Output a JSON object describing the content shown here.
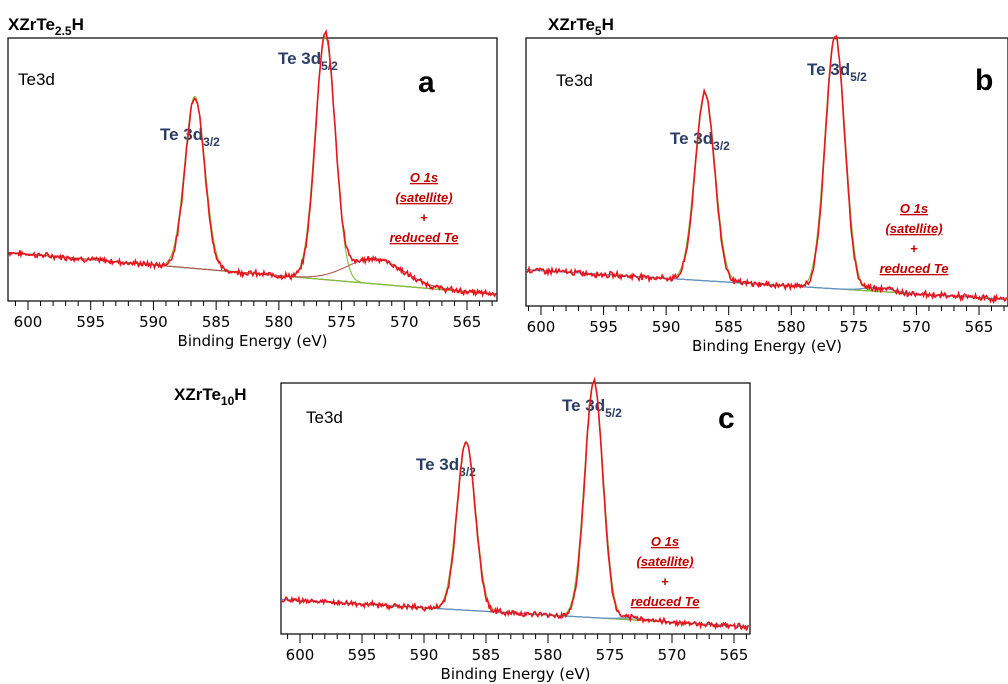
{
  "chart_data": [
    {
      "type": "line",
      "panel": "a",
      "sample": "XZrTe",
      "sample_sub": "2.5",
      "sample_suffix": "H",
      "region": "Te3d",
      "xlabel": "Binding Energy (eV)",
      "xlim": [
        602,
        562
      ],
      "x_reversed": true,
      "xticks": [
        600,
        595,
        590,
        585,
        580,
        575,
        570,
        565
      ],
      "peak_labels": [
        {
          "main": "Te 3d",
          "sub": "3/2",
          "energy": 586.7
        },
        {
          "main": "Te 3d",
          "sub": "5/2",
          "energy": 576.3
        }
      ],
      "annotation": [
        "O 1s",
        "(satellite)",
        "+",
        "reduced Te"
      ],
      "peaks": [
        {
          "name": "Te 3d3/2",
          "center": 586.7,
          "fwhm": 1.8,
          "height": 0.68
        },
        {
          "name": "Te 3d5/2",
          "center": 576.3,
          "fwhm": 1.8,
          "height": 0.96
        },
        {
          "name": "O 1s (satellite) + reduced Te",
          "center": 572.3,
          "fwhm": 5.0,
          "height": 0.1
        }
      ],
      "background": {
        "start": 0.17,
        "end": 0.0
      },
      "colors": {
        "envelope": "#e8141e",
        "component": "#7dbf3a",
        "sat_component": "#b05a5a",
        "background": "#8b6b3e",
        "shoulder": "#5b8fd8"
      }
    },
    {
      "type": "line",
      "panel": "b",
      "sample": "XZrTe",
      "sample_sub": "5",
      "sample_suffix": "H",
      "region": "Te3d",
      "xlabel": "Binding Energy (eV)",
      "xlim": [
        602,
        562
      ],
      "x_reversed": true,
      "xticks": [
        600,
        595,
        590,
        585,
        580,
        575,
        570,
        565
      ],
      "peak_labels": [
        {
          "main": "Te 3d",
          "sub": "3/2",
          "energy": 586.9
        },
        {
          "main": "Te 3d",
          "sub": "5/2",
          "energy": 576.5
        }
      ],
      "annotation": [
        "O 1s",
        "(satellite)",
        "+",
        "reduced Te"
      ],
      "peaks": [
        {
          "name": "Te 3d3/2",
          "center": 586.9,
          "fwhm": 1.8,
          "height": 0.73
        },
        {
          "name": "Te 3d5/2",
          "center": 576.5,
          "fwhm": 1.8,
          "height": 0.98
        },
        {
          "name": "O 1s (satellite) + reduced Te",
          "center": 573.0,
          "fwhm": 2.5,
          "height": 0.015
        }
      ],
      "background": {
        "start": 0.12,
        "end": 0.0
      },
      "colors": {
        "envelope": "#e8141e",
        "component": "#7dbf3a",
        "sat_component": "#5b8fd8",
        "background": "#8b6b3e",
        "shoulder": "#5b8fd8"
      }
    },
    {
      "type": "line",
      "panel": "c",
      "sample": "XZrTe",
      "sample_sub": "10",
      "sample_suffix": "H",
      "region": "Te3d",
      "xlabel": "Binding Energy (eV)",
      "xlim": [
        602,
        562
      ],
      "x_reversed": true,
      "xticks": [
        600,
        595,
        590,
        585,
        580,
        575,
        570,
        565
      ],
      "peak_labels": [
        {
          "main": "Te 3d",
          "sub": "3/2",
          "energy": 586.6
        },
        {
          "main": "Te 3d",
          "sub": "5/2",
          "energy": 576.3
        }
      ],
      "annotation": [
        "O 1s",
        "(satellite)",
        "+",
        "reduced Te"
      ],
      "peaks": [
        {
          "name": "Te 3d3/2",
          "center": 586.6,
          "fwhm": 1.7,
          "height": 0.7
        },
        {
          "name": "Te 3d5/2",
          "center": 576.3,
          "fwhm": 1.7,
          "height": 0.98
        },
        {
          "name": "O 1s (satellite) + reduced Te",
          "center": 573.0,
          "fwhm": 2.5,
          "height": 0.008
        }
      ],
      "background": {
        "start": 0.12,
        "end": 0.0
      },
      "colors": {
        "envelope": "#e8141e",
        "component": "#7dbf3a",
        "sat_component": "#5b8fd8",
        "background": "#8b6b3e",
        "shoulder": "#5b8fd8"
      }
    }
  ]
}
